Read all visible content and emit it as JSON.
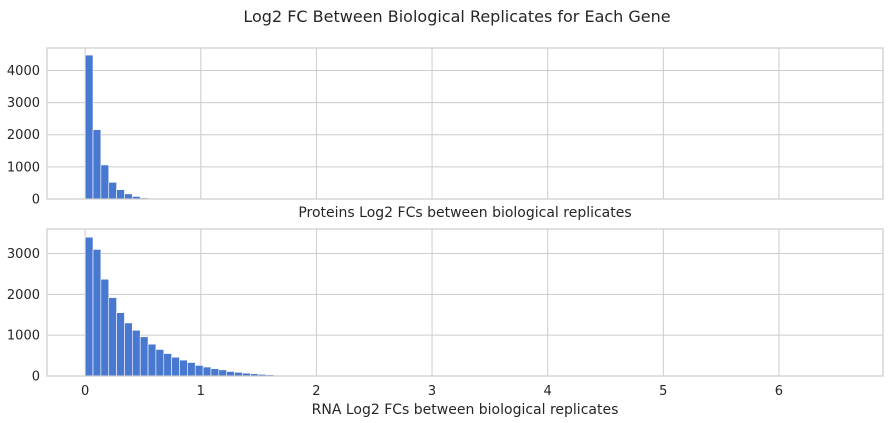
{
  "chart_data": {
    "type": "bar",
    "title": "Log2 FC Between Biological Replicates for Each Gene",
    "bar_color": "#4878cf",
    "grid": true,
    "shared_x": true,
    "xlim": [
      -0.33,
      6.9
    ],
    "xticks": [
      0,
      1,
      2,
      3,
      4,
      5,
      6
    ],
    "bin_width": 0.068,
    "subplots": [
      {
        "name": "proteins",
        "xlabel": "Proteins Log2 FCs between biological replicates",
        "ylabel": "",
        "ylim": [
          0,
          4700
        ],
        "yticks": [
          0,
          1000,
          2000,
          3000,
          4000
        ],
        "bin_start": 0,
        "values": [
          4480,
          2160,
          1060,
          520,
          290,
          160,
          80,
          35,
          15,
          6,
          3,
          2,
          1,
          1,
          0,
          1
        ]
      },
      {
        "name": "rna",
        "xlabel": "RNA Log2 FCs between biological replicates",
        "ylabel": "",
        "ylim": [
          0,
          3600
        ],
        "yticks": [
          0,
          1000,
          2000,
          3000
        ],
        "bin_start": 0,
        "values": [
          3400,
          3100,
          2370,
          1920,
          1550,
          1300,
          1120,
          960,
          780,
          650,
          550,
          460,
          390,
          330,
          260,
          220,
          180,
          150,
          110,
          90,
          70,
          55,
          40,
          30,
          20,
          10,
          5,
          3,
          2,
          1,
          1,
          1
        ]
      }
    ]
  }
}
